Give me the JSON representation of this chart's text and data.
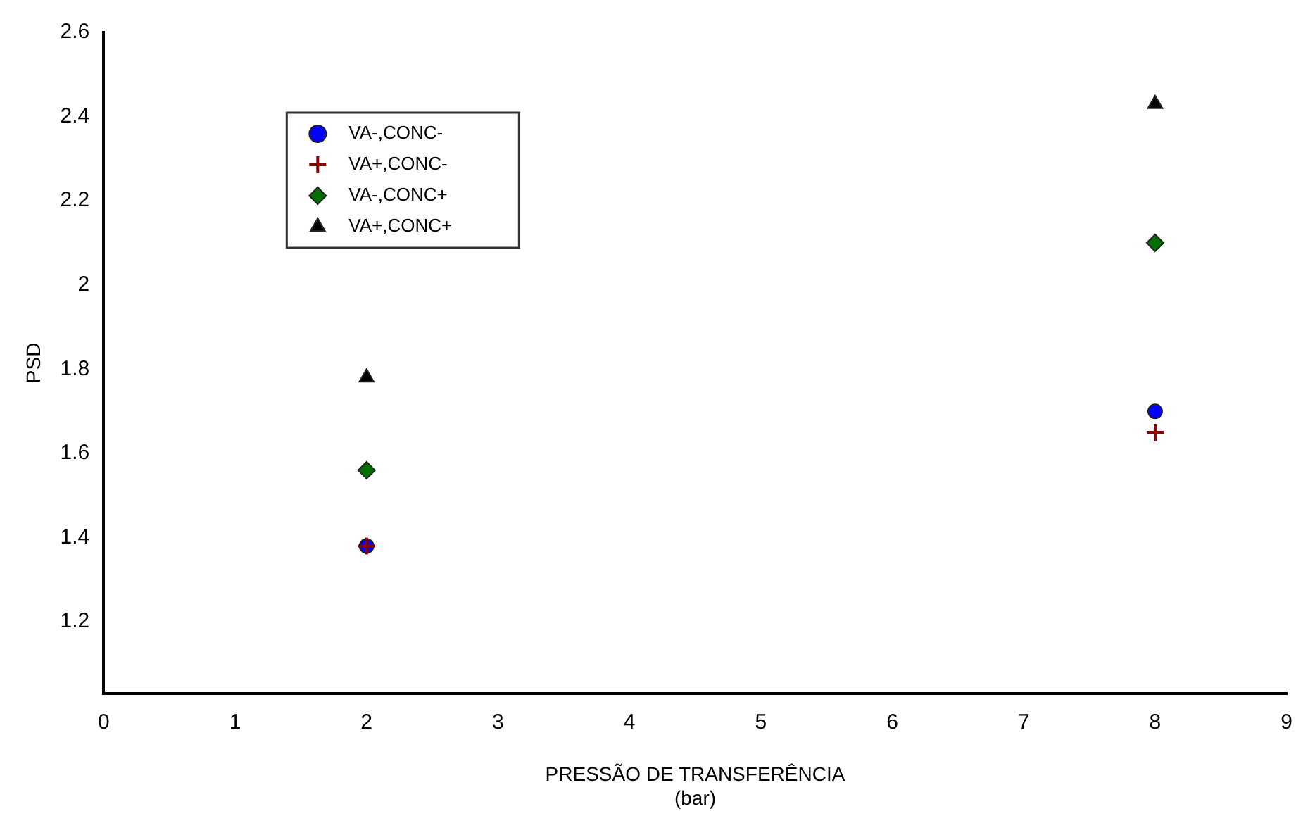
{
  "chart_data": {
    "type": "scatter",
    "xlabel": "PRESSÃO DE TRANSFERÊNCIA\n(bar)",
    "ylabel": "PSD",
    "x": [
      2,
      8
    ],
    "xlim": [
      0,
      9
    ],
    "xticks": [
      0,
      1,
      2,
      3,
      4,
      5,
      6,
      7,
      8,
      9
    ],
    "ylim": [
      1.03,
      2.6
    ],
    "yticks": [
      1.2,
      1.4,
      1.6,
      1.8,
      2,
      2.2,
      2.4,
      2.6
    ],
    "grid": false,
    "legend": "top left",
    "series": [
      {
        "name": "VA-,CONC-",
        "color": "#0000ff",
        "marker": "circle",
        "values": [
          1.38,
          1.7
        ]
      },
      {
        "name": "VA+,CONC-",
        "color": "#8b0000",
        "marker": "cross",
        "values": [
          1.38,
          1.65
        ]
      },
      {
        "name": "VA-,CONC+",
        "color": "#007000",
        "marker": "diamond",
        "values": [
          1.56,
          2.1
        ]
      },
      {
        "name": "VA+,CONC+",
        "color": "#000000",
        "marker": "triangle",
        "values": [
          1.78,
          2.43
        ]
      }
    ]
  }
}
